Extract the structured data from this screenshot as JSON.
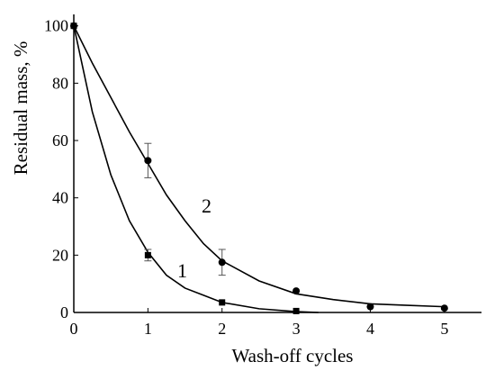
{
  "chart_data": {
    "type": "scatter",
    "x_label": "Wash-off cycles",
    "y_label": "Residual mass, %",
    "xlim": [
      0,
      5.5
    ],
    "ylim": [
      0,
      104
    ],
    "xticks": [
      0,
      1,
      2,
      3,
      4,
      5
    ],
    "yticks": [
      0,
      20,
      40,
      60,
      80,
      100
    ],
    "series": [
      {
        "name": "1",
        "color": "#000000",
        "marker": "square",
        "x": [
          0,
          1,
          2,
          3
        ],
        "values": [
          100,
          20,
          3.5,
          0.5
        ],
        "errors": [
          null,
          2,
          null,
          null
        ],
        "fit_x": [
          0,
          0.25,
          0.5,
          0.75,
          1,
          1.25,
          1.5,
          1.75,
          2,
          2.5,
          3,
          3.3
        ],
        "fit_values": [
          100,
          70,
          48,
          32,
          21,
          13,
          8.5,
          6,
          3.5,
          1.3,
          0.3,
          0
        ]
      },
      {
        "name": "2",
        "color": "#000000",
        "marker": "circle",
        "x": [
          0,
          1,
          2,
          3,
          4,
          5
        ],
        "values": [
          100,
          53,
          17.5,
          7.5,
          2,
          1.5
        ],
        "errors": [
          null,
          6,
          4.5,
          null,
          null,
          null
        ],
        "fit_x": [
          0,
          0.25,
          0.5,
          0.75,
          1,
          1.25,
          1.5,
          1.75,
          2,
          2.5,
          3,
          3.5,
          4,
          4.5,
          5
        ],
        "fit_values": [
          100,
          87,
          75,
          63,
          52,
          41,
          32,
          24,
          18,
          11,
          6.5,
          4.5,
          3,
          2.5,
          2
        ]
      }
    ]
  }
}
